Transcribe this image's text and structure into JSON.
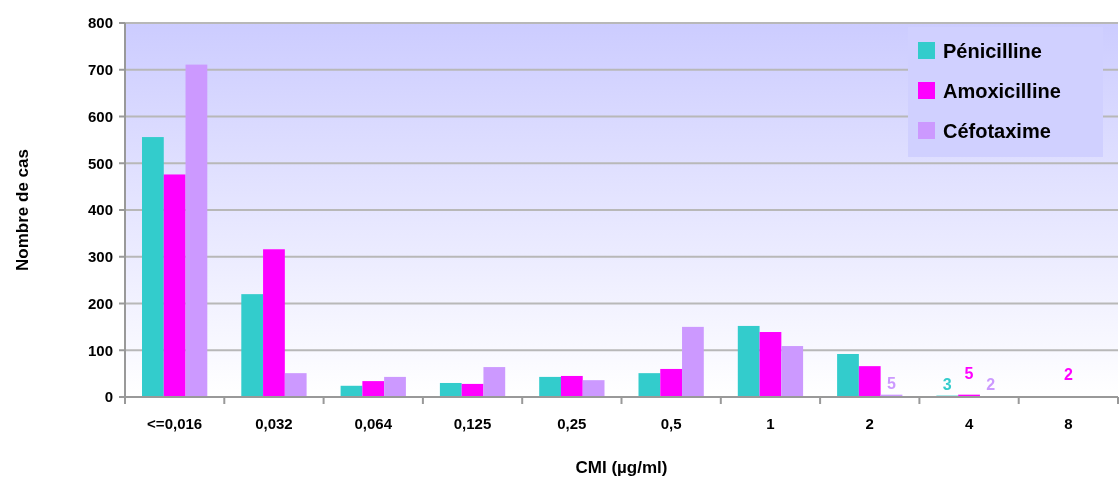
{
  "chart_data": {
    "type": "bar",
    "xlabel": "CMI (µg/ml)",
    "ylabel": "Nombre de cas",
    "categories": [
      "<=0,016",
      "0,032",
      "0,064",
      "0,125",
      "0,25",
      "0,5",
      "1",
      "2",
      "4",
      "8"
    ],
    "series": [
      {
        "name": "Pénicilline",
        "color": "#33cccc",
        "values": [
          556,
          220,
          24,
          30,
          43,
          51,
          152,
          92,
          3,
          null
        ],
        "value_labels": [
          null,
          null,
          null,
          null,
          null,
          null,
          null,
          null,
          "3",
          null
        ]
      },
      {
        "name": "Amoxicilline",
        "color": "#ff00ff",
        "values": [
          476,
          316,
          34,
          28,
          45,
          60,
          139,
          66,
          5,
          2
        ],
        "value_labels": [
          null,
          null,
          null,
          null,
          null,
          null,
          null,
          null,
          "5",
          "2"
        ]
      },
      {
        "name": "Céfotaxime",
        "color": "#cc99ff",
        "values": [
          711,
          51,
          43,
          64,
          36,
          150,
          109,
          5,
          2,
          null
        ],
        "value_labels": [
          null,
          null,
          null,
          null,
          null,
          null,
          null,
          "5",
          "2",
          null
        ]
      }
    ],
    "ylim": [
      0,
      800
    ],
    "yticks": [
      0,
      100,
      200,
      300,
      400,
      500,
      600,
      700,
      800
    ],
    "grid": "y",
    "legend": "top right"
  }
}
